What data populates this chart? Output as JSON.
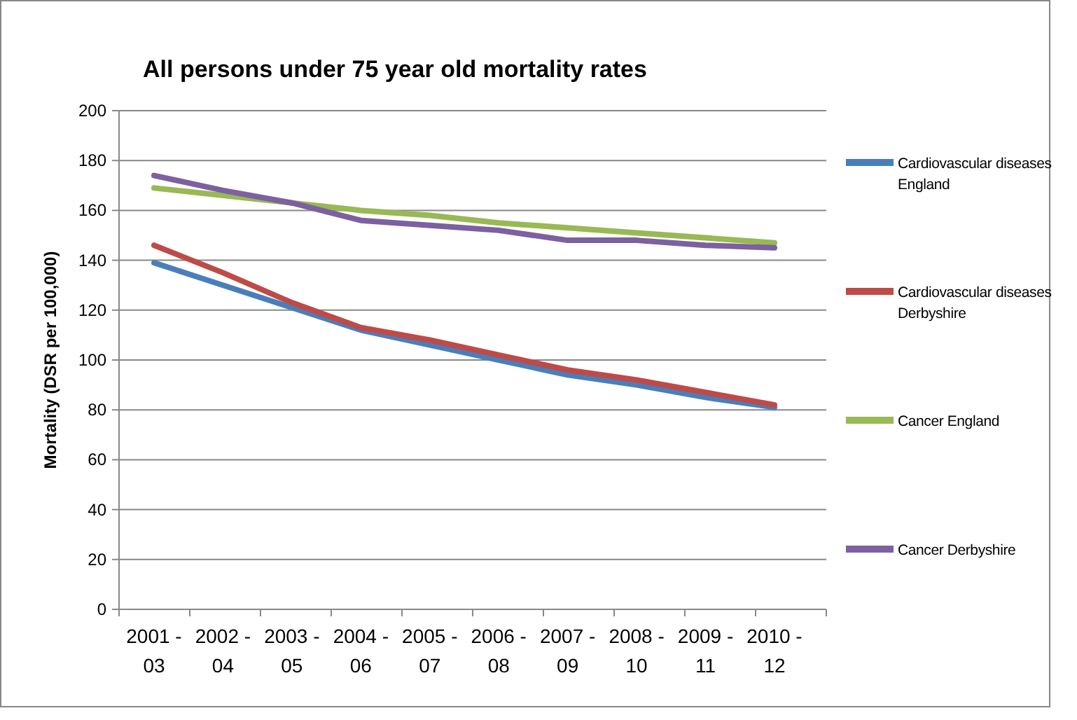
{
  "chart_data": {
    "type": "line",
    "title": "All persons under 75 year old mortality rates",
    "ylabel": "Mortality (DSR per 100,000)",
    "categories": [
      "2001 - 03",
      "2002 - 04",
      "2003 - 05",
      "2004 - 06",
      "2005 - 07",
      "2006 - 08",
      "2007 - 09",
      "2008 - 10",
      "2009 - 11",
      "2010 - 12"
    ],
    "series": [
      {
        "name": "Cardiovascular diseases England",
        "color": "#4a7ebb",
        "values": [
          139,
          130,
          121,
          112,
          106,
          100,
          94,
          90,
          85,
          81
        ]
      },
      {
        "name": "Cardiovascular diseases Derbyshire",
        "color": "#be4b48",
        "values": [
          146,
          135,
          123,
          113,
          108,
          102,
          96,
          92,
          87,
          82
        ]
      },
      {
        "name": "Cancer England",
        "color": "#98b954",
        "values": [
          169,
          166,
          163,
          160,
          158,
          155,
          153,
          151,
          149,
          147
        ]
      },
      {
        "name": "Cancer Derbyshire",
        "color": "#7d60a0",
        "values": [
          174,
          168,
          163,
          156,
          154,
          152,
          148,
          148,
          146,
          145
        ]
      }
    ],
    "ylim": [
      0,
      200
    ],
    "yticks": [
      0,
      20,
      40,
      60,
      80,
      100,
      120,
      140,
      160,
      180,
      200
    ],
    "grid": "y",
    "legend": "right",
    "marker": "none",
    "line_style": "solid"
  }
}
